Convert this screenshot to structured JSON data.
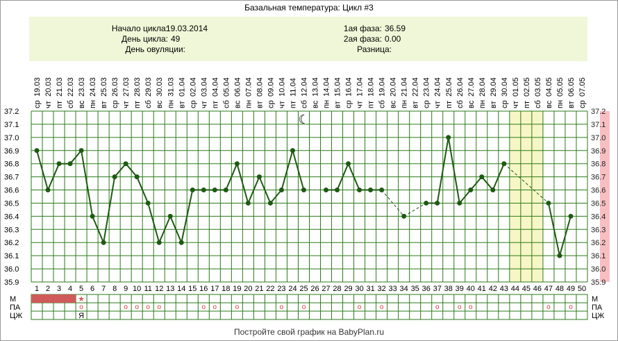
{
  "title": "Базальная температура: Цикл #3",
  "info": {
    "cycle_start_label": "Начало цикла:",
    "cycle_start_value": "19.03.2014",
    "cycle_day_label": "День цикла:",
    "cycle_day_value": "49",
    "ovulation_day_label": "День овуляции:",
    "ovulation_day_value": "",
    "phase1_label": "1ая фаза:",
    "phase1_value": "36.59",
    "phase2_label": "2ая фаза:",
    "phase2_value": "0.00",
    "difference_label": "Разница:",
    "difference_value": ""
  },
  "footer": "Постройте свой график на BabyPlan.ru",
  "rows": {
    "m_label": "М",
    "pa_label": "ПА",
    "cj_label": "ЦЖ"
  },
  "marks": {
    "circle_glyph": "o",
    "star_glyph": "★",
    "ya_glyph": "Я",
    "moon_glyph": "☾"
  },
  "colors": {
    "line": "#1d5a12",
    "grid": "#2a7a18",
    "highlight": "#f7f6c6",
    "right_bar": "#f8bfc3",
    "menstruation": "#d05a5a",
    "pa_circle": "#d83a3a"
  },
  "chart_data": {
    "type": "line",
    "ylim": [
      35.9,
      37.2
    ],
    "yticks": [
      "35.9",
      "36.0",
      "36.1",
      "36.2",
      "36.3",
      "36.4",
      "36.5",
      "36.6",
      "36.7",
      "36.8",
      "36.9",
      "37.0",
      "37.1",
      "37.2"
    ],
    "right_yticks": [
      "35.9",
      "36.0",
      "36.1",
      "36.2",
      "36.3",
      "36.4",
      "36.5",
      "36.6",
      "36.7",
      "36.8",
      "36.9",
      "37.0",
      "37.1",
      "37.2"
    ],
    "days": [
      1,
      2,
      3,
      4,
      5,
      6,
      7,
      8,
      9,
      10,
      11,
      12,
      13,
      14,
      15,
      16,
      17,
      18,
      19,
      20,
      21,
      22,
      23,
      24,
      25,
      26,
      27,
      28,
      29,
      30,
      31,
      32,
      33,
      34,
      35,
      36,
      37,
      38,
      39,
      40,
      41,
      42,
      43,
      44,
      45,
      46,
      47,
      48,
      49,
      50
    ],
    "dates": [
      "19.03",
      "20.03",
      "21.03",
      "22.03",
      "23.03",
      "24.03",
      "25.03",
      "26.03",
      "27.03",
      "28.03",
      "29.03",
      "30.03",
      "31.03",
      "01.04",
      "02.04",
      "03.04",
      "04.04",
      "05.04",
      "06.04",
      "07.04",
      "08.04",
      "09.04",
      "10.04",
      "11.04",
      "12.04",
      "13.04",
      "14.04",
      "15.04",
      "16.04",
      "17.04",
      "18.04",
      "19.04",
      "20.04",
      "21.04",
      "22.04",
      "23.04",
      "24.04",
      "25.04",
      "26.04",
      "27.04",
      "28.04",
      "29.04",
      "30.04",
      "01.05",
      "02.05",
      "03.05",
      "04.05",
      "05.05",
      "06.05",
      "07.05"
    ],
    "weekdays": [
      "ср",
      "чт",
      "пт",
      "сб",
      "вс",
      "пн",
      "вт",
      "ср",
      "чт",
      "пт",
      "сб",
      "вс",
      "пн",
      "вт",
      "ср",
      "чт",
      "пт",
      "сб",
      "вс",
      "пн",
      "вт",
      "ср",
      "чт",
      "пт",
      "сб",
      "вс",
      "пн",
      "вт",
      "ср",
      "чт",
      "пт",
      "сб",
      "вс",
      "пн",
      "вт",
      "ср",
      "чт",
      "пт",
      "сб",
      "вс",
      "пн",
      "вт",
      "ср",
      "чт",
      "пт",
      "сб",
      "вс",
      "пн",
      "вт",
      "ср"
    ],
    "series": [
      {
        "values": [
          36.9,
          36.6,
          36.8,
          36.8,
          36.9,
          36.4,
          36.2,
          36.7,
          36.8,
          36.7,
          36.5,
          36.2,
          36.4,
          36.2,
          36.6,
          36.6,
          36.6,
          36.6,
          36.8,
          36.5,
          36.7,
          36.5,
          36.6,
          36.9,
          36.6,
          null,
          36.6,
          36.6,
          36.8,
          36.6,
          36.6,
          36.6,
          null,
          36.4,
          null,
          36.5,
          36.5,
          37.0,
          36.5,
          36.6,
          36.7,
          36.6,
          36.8,
          null,
          null,
          null,
          36.5,
          36.1,
          36.4,
          null
        ]
      }
    ],
    "highlight_days": [
      44,
      45,
      46
    ],
    "moon_day": 25,
    "menstruation_days": [
      1,
      2,
      3,
      4
    ],
    "star_day": 5,
    "pa_days": [
      5,
      9,
      10,
      11,
      12,
      16,
      17,
      19,
      23,
      25,
      30,
      32,
      37,
      39,
      40,
      47,
      49
    ],
    "cj_ya_day": 5,
    "grid": true
  }
}
